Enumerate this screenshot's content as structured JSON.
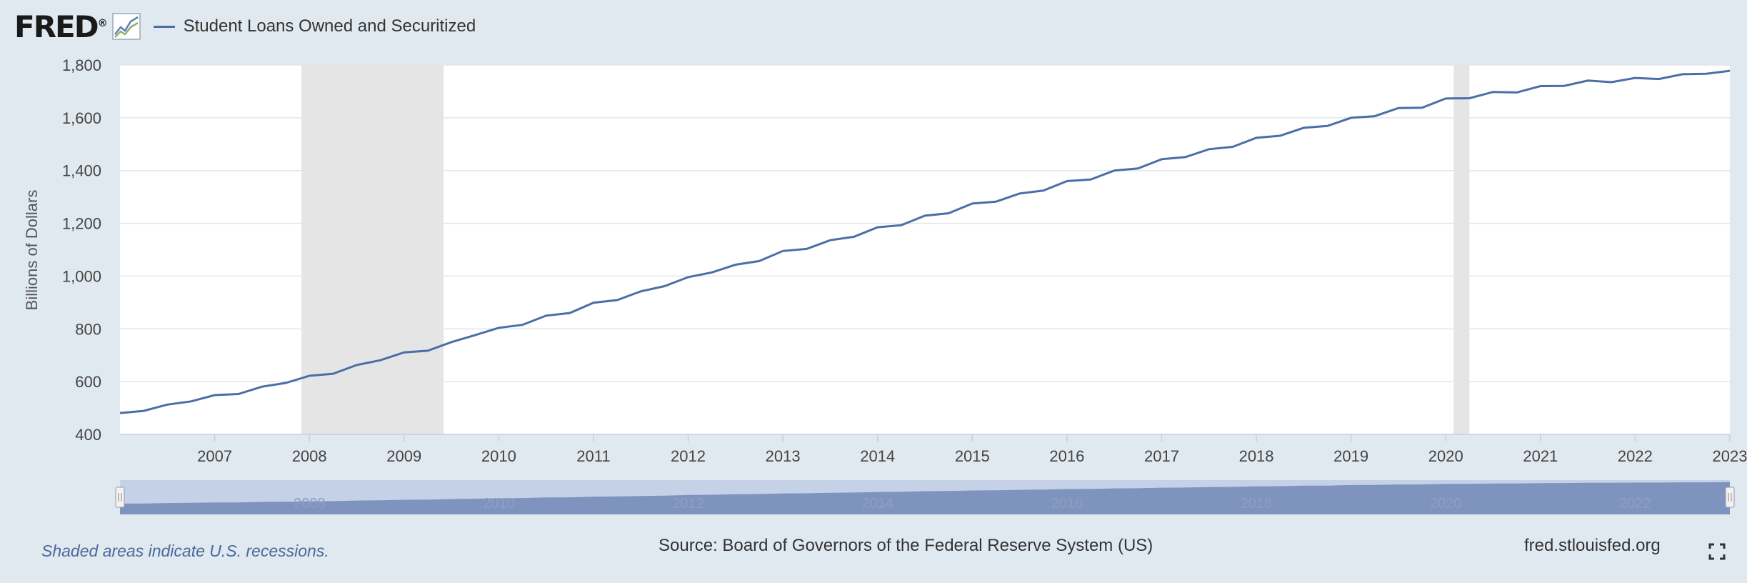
{
  "header": {
    "logo_text": "FRED",
    "logo_mark": "®",
    "legend_label": "Student Loans Owned and Securitized"
  },
  "colors": {
    "series": "#4c6ea6",
    "recession": "#e5e5e5",
    "navigator_fill": "#7e93bd",
    "navigator_bg": "#c4d1e6"
  },
  "icons": {
    "logo": "fred-chart-icon",
    "fullscreen": "fullscreen-icon"
  },
  "chart_data": {
    "type": "line",
    "title": "Student Loans Owned and Securitized",
    "ylabel": "Billions of Dollars",
    "xlabel": "",
    "ylim": [
      400,
      1800
    ],
    "xlim": [
      2006.0,
      2023.0
    ],
    "yticks": [
      400,
      600,
      800,
      1000,
      1200,
      1400,
      1600,
      1800
    ],
    "ytick_labels": [
      "400",
      "600",
      "800",
      "1,000",
      "1,200",
      "1,400",
      "1,600",
      "1,800"
    ],
    "xticks": [
      2007,
      2008,
      2009,
      2010,
      2011,
      2012,
      2013,
      2014,
      2015,
      2016,
      2017,
      2018,
      2019,
      2020,
      2021,
      2022,
      2023
    ],
    "recessions": [
      [
        2007.917,
        2009.417
      ],
      [
        2020.083,
        2020.25
      ]
    ],
    "grid": true,
    "series": [
      {
        "name": "Student Loans Owned and Securitized",
        "x": [
          2006.0,
          2006.25,
          2006.5,
          2006.75,
          2007.0,
          2007.25,
          2007.5,
          2007.75,
          2008.0,
          2008.25,
          2008.5,
          2008.75,
          2009.0,
          2009.25,
          2009.5,
          2009.75,
          2010.0,
          2010.25,
          2010.5,
          2010.75,
          2011.0,
          2011.25,
          2011.5,
          2011.75,
          2012.0,
          2012.25,
          2012.5,
          2012.75,
          2013.0,
          2013.25,
          2013.5,
          2013.75,
          2014.0,
          2014.25,
          2014.5,
          2014.75,
          2015.0,
          2015.25,
          2015.5,
          2015.75,
          2016.0,
          2016.25,
          2016.5,
          2016.75,
          2017.0,
          2017.25,
          2017.5,
          2017.75,
          2018.0,
          2018.25,
          2018.5,
          2018.75,
          2019.0,
          2019.25,
          2019.5,
          2019.75,
          2020.0,
          2020.25,
          2020.5,
          2020.75,
          2021.0,
          2021.25,
          2021.5,
          2021.75,
          2022.0,
          2022.25,
          2022.5,
          2022.75,
          2023.0
        ],
        "values": [
          481,
          489,
          513,
          525,
          549,
          553,
          581,
          595,
          622,
          630,
          663,
          681,
          711,
          717,
          750,
          776,
          804,
          815,
          850,
          860,
          899,
          909,
          942,
          962,
          996,
          1014,
          1043,
          1057,
          1095,
          1103,
          1136,
          1149,
          1185,
          1193,
          1229,
          1238,
          1275,
          1282,
          1313,
          1324,
          1360,
          1366,
          1400,
          1408,
          1443,
          1451,
          1481,
          1490,
          1524,
          1532,
          1562,
          1569,
          1600,
          1606,
          1637,
          1638,
          1673,
          1674,
          1698,
          1696,
          1720,
          1721,
          1741,
          1735,
          1751,
          1747,
          1765,
          1767,
          1778
        ]
      }
    ],
    "navigator": {
      "range_start": 2006.0,
      "range_end": 2023.0,
      "tick_years": [
        2008,
        2010,
        2012,
        2014,
        2016,
        2018,
        2020,
        2022
      ],
      "tick_labels": [
        "2008",
        "2010",
        "2012",
        "2014",
        "2016",
        "2018",
        "2020",
        "2022"
      ]
    }
  },
  "footer": {
    "recession_note": "Shaded areas indicate U.S. recessions.",
    "source": "Source: Board of Governors of the Federal Reserve System (US)",
    "site": "fred.stlouisfed.org"
  }
}
